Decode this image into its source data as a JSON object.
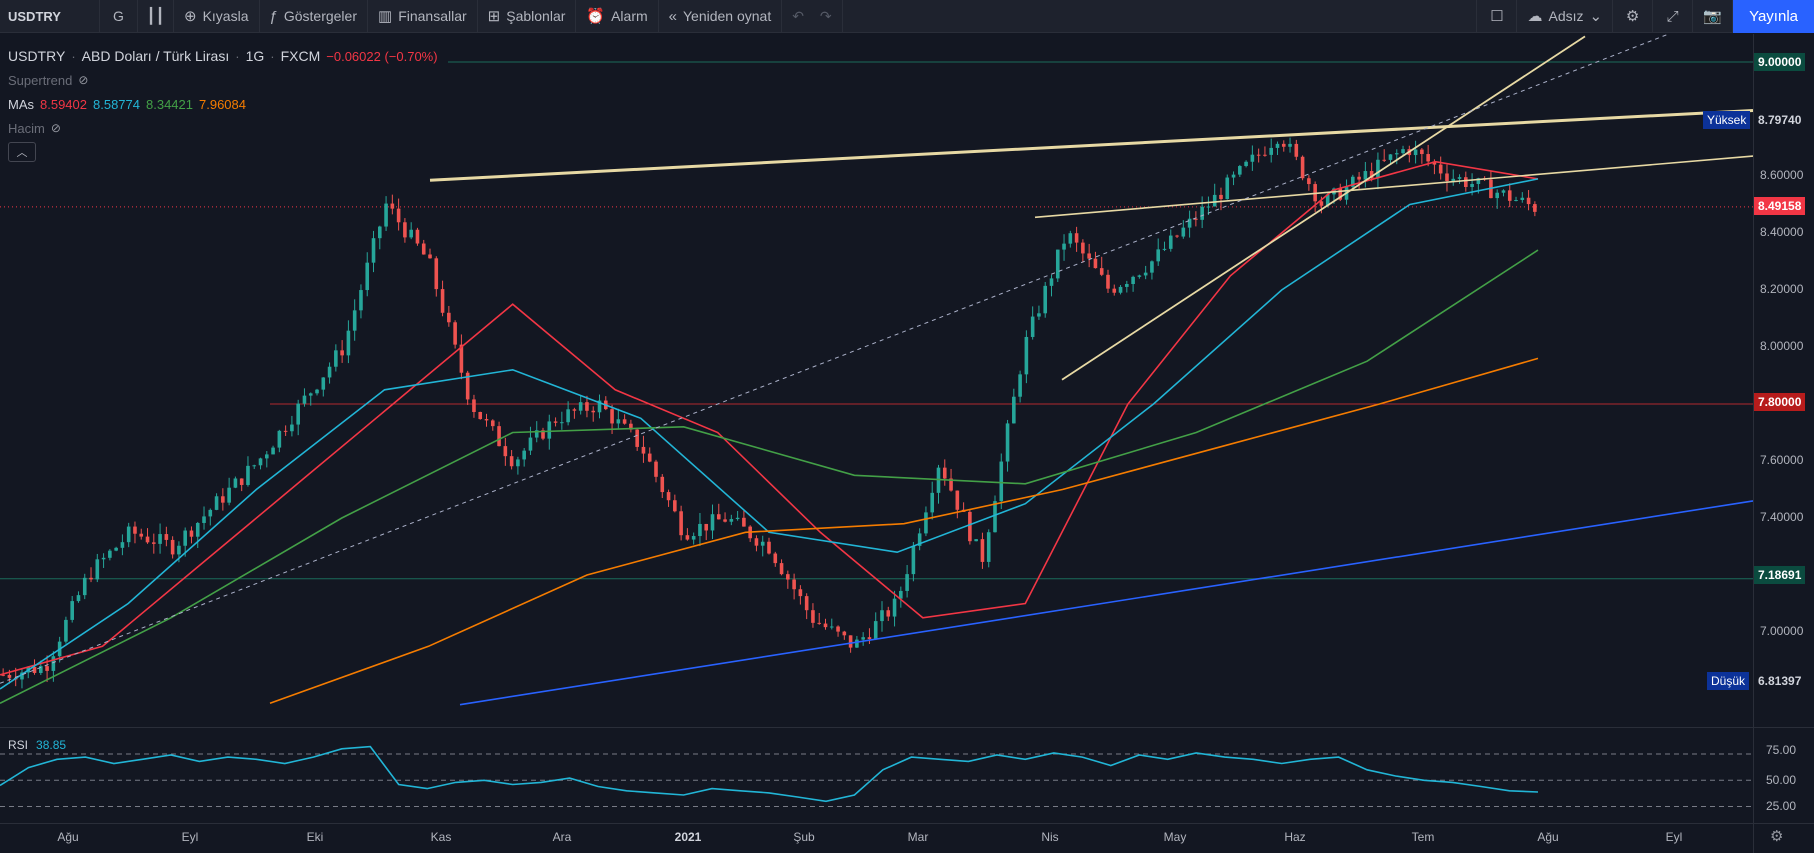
{
  "toolbar": {
    "symbol": "USDTRY",
    "interval": "G",
    "compare": "Kıyasla",
    "indicators": "Göstergeler",
    "financials": "Finansallar",
    "templates": "Şablonlar",
    "alert": "Alarm",
    "replay": "Yeniden oynat",
    "layout_name": "Adsız",
    "publish": "Yayınla"
  },
  "legend": {
    "symbol": "USDTRY",
    "name": "ABD Doları / Türk Lirası",
    "interval": "1G",
    "exchange": "FXCM",
    "change": "−0.06022 (−0.70%)",
    "supertrend": "Supertrend",
    "mas_label": "MAs",
    "ma_values": [
      "8.59402",
      "8.58774",
      "8.34421",
      "7.96084"
    ],
    "volume": "Hacim"
  },
  "colors": {
    "background": "#131722",
    "up": "#26a69a",
    "down": "#ef5350",
    "ma20": "#f23645",
    "ma50": "#22b5d6",
    "ma100": "#43a047",
    "ma200": "#f57c00",
    "trendline": "#e7d9a4",
    "blue_line": "#2962ff",
    "accent": "#2962ff"
  },
  "price_axis": {
    "ticks": [
      "9.00000",
      "8.60000",
      "8.40000",
      "8.20000",
      "8.00000",
      "7.60000",
      "7.40000",
      "7.00000"
    ],
    "high_label": "Yüksek",
    "high_value": "8.79740",
    "current_value": "8.49158",
    "level_780": "7.80000",
    "level_718": "7.18691",
    "low_label": "Düşük",
    "low_value": "6.81397"
  },
  "rsi": {
    "label": "RSI",
    "value": "38.85",
    "ticks": [
      "75.00",
      "50.00",
      "25.00"
    ]
  },
  "time_axis": [
    "Ağu",
    "Eyl",
    "Eki",
    "Kas",
    "Ara",
    "2021",
    "Şub",
    "Mar",
    "Nis",
    "May",
    "Haz",
    "Tem",
    "Ağu",
    "Eyl"
  ],
  "chart_data": {
    "type": "candlestick",
    "symbol": "USDTRY",
    "interval": "1G",
    "ylim": [
      6.75,
      9.05
    ],
    "x": [
      "Ağu",
      "Eyl",
      "Eki",
      "Kas",
      "Ara",
      "2021",
      "Şub",
      "Mar",
      "Nis",
      "May",
      "Haz",
      "Tem"
    ],
    "close_path": [
      6.85,
      6.88,
      7.2,
      7.35,
      7.3,
      7.45,
      7.6,
      7.8,
      8.0,
      8.5,
      8.3,
      7.8,
      7.6,
      7.75,
      7.8,
      7.65,
      7.35,
      7.4,
      7.3,
      7.05,
      6.95,
      7.1,
      7.6,
      7.25,
      8.0,
      8.4,
      8.2,
      8.3,
      8.45,
      8.6,
      8.75,
      8.5,
      8.6,
      8.7,
      8.6,
      8.55,
      8.49
    ],
    "series": [
      {
        "name": "MA 20",
        "last": 8.59402,
        "path": [
          6.85,
          6.95,
          7.25,
          7.55,
          7.85,
          8.15,
          7.85,
          7.7,
          7.35,
          7.05,
          7.1,
          7.8,
          8.25,
          8.55,
          8.65,
          8.59
        ]
      },
      {
        "name": "MA 50",
        "last": 8.58774,
        "path": [
          6.8,
          7.1,
          7.5,
          7.85,
          7.92,
          7.75,
          7.35,
          7.28,
          7.45,
          7.8,
          8.2,
          8.5,
          8.59
        ]
      },
      {
        "name": "MA 100",
        "last": 8.34421,
        "path": [
          6.75,
          7.05,
          7.4,
          7.7,
          7.72,
          7.55,
          7.52,
          7.7,
          7.95,
          8.34
        ]
      },
      {
        "name": "MA 200",
        "last": 7.96084,
        "path": [
          6.75,
          6.95,
          7.2,
          7.35,
          7.38,
          7.5,
          7.65,
          7.8,
          7.96
        ]
      }
    ],
    "levels": [
      9.0,
      7.8,
      7.18691
    ],
    "high": 8.7974,
    "low": 6.81397,
    "last": 8.49158,
    "rsi_last": 38.85
  }
}
